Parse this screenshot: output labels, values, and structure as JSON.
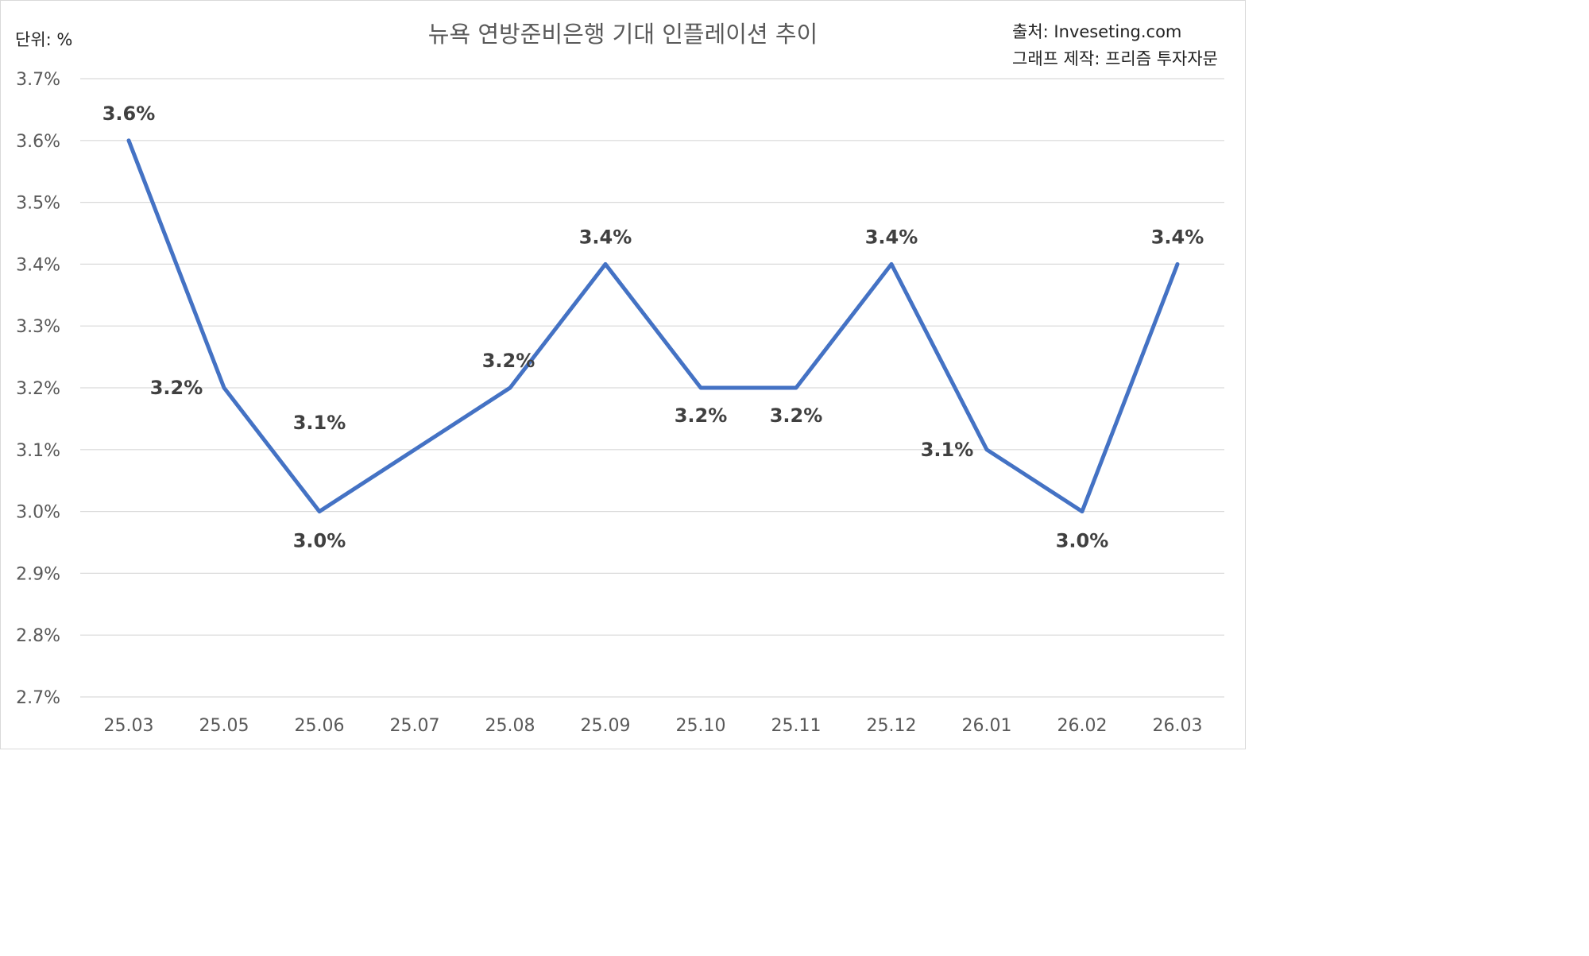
{
  "header": {
    "unit_label": "단위: %",
    "source_label": "출처: Inveseting.com",
    "credit_label": "그래프 제작: 프리즘 투자자문"
  },
  "chart_data": {
    "type": "line",
    "title": "뉴욕 연방준비은행 기대 인플레이션 추이",
    "xlabel": "",
    "ylabel": "",
    "categories": [
      "25.03",
      "25.05",
      "25.06",
      "25.07",
      "25.08",
      "25.09",
      "25.10",
      "25.11",
      "25.12",
      "26.01",
      "26.02",
      "26.03"
    ],
    "series": [
      {
        "values": [
          3.6,
          3.2,
          3.0,
          3.1,
          3.2,
          3.4,
          3.2,
          3.2,
          3.4,
          3.1,
          3.0,
          3.4
        ],
        "data_labels": [
          "3.6%",
          "3.2%",
          "3.0%",
          "3.1%",
          "3.2%",
          "3.4%",
          "3.2%",
          "3.2%",
          "3.4%",
          "3.1%",
          "3.0%",
          "3.4%"
        ],
        "color": "#4472c4"
      }
    ],
    "ylim": [
      2.7,
      3.7
    ],
    "yticks": [
      2.7,
      2.8,
      2.9,
      3.0,
      3.1,
      3.2,
      3.3,
      3.4,
      3.5,
      3.6,
      3.7
    ],
    "ytick_labels": [
      "2.7%",
      "2.8%",
      "2.9%",
      "3.0%",
      "3.1%",
      "3.2%",
      "3.3%",
      "3.4%",
      "3.5%",
      "3.6%",
      "3.7%"
    ],
    "grid": true,
    "legend": "none"
  }
}
